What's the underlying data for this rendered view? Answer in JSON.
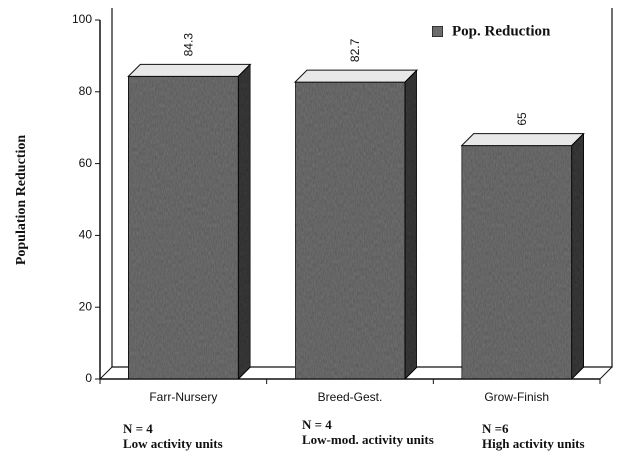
{
  "chart_data": {
    "type": "bar3d",
    "y_label": "Population Reduction",
    "legend": "Pop. Reduction",
    "categories": [
      "Farr-Nursery",
      "Breed-Gest.",
      "Grow-Finish"
    ],
    "values": [
      84.3,
      82.7,
      65
    ],
    "color": "#6f6f6f",
    "ylim": [
      0,
      100
    ],
    "yticks": [
      0,
      20,
      40,
      60,
      80,
      100
    ],
    "annotations": [
      {
        "n": "N = 4",
        "text": "Low activity units"
      },
      {
        "n": "N = 4",
        "text": "Low-mod. activity units"
      },
      {
        "n": "N =6",
        "text": "High activity units"
      }
    ]
  }
}
